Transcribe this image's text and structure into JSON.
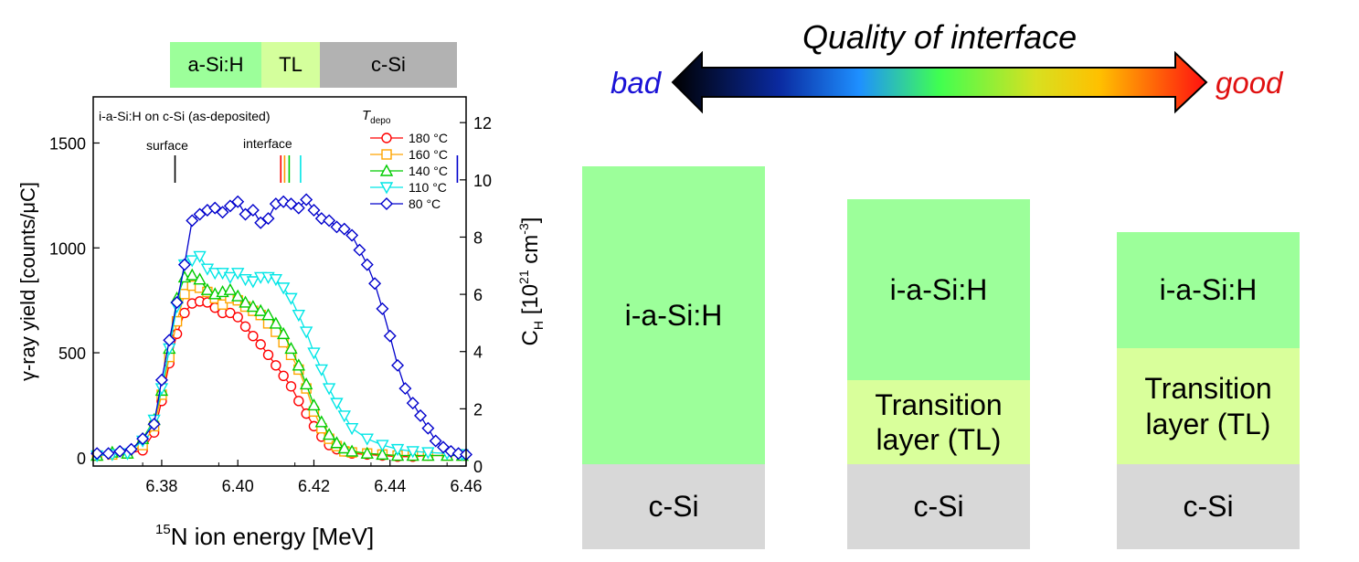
{
  "colors": {
    "asi": "#9cff9a",
    "tl": "#d9ff9b",
    "csi": "#d8d8d8",
    "bar_asi": "#9cff9a",
    "bar_tl": "#d4ff9c",
    "bar_csi": "#b2b2b2"
  },
  "top_bar": {
    "asi": "a-Si:H",
    "tl": "TL",
    "csi": "c-Si"
  },
  "quality": {
    "title": "Quality of interface",
    "bad": "bad",
    "good": "good"
  },
  "stacks": [
    {
      "top": "i-a-Si:H",
      "bottom": "c-Si"
    },
    {
      "top": "i-a-Si:H",
      "middle": "Transition layer (TL)",
      "bottom": "c-Si"
    },
    {
      "top": "i-a-Si:H",
      "middle": "Transition layer (TL)",
      "bottom": "c-Si"
    }
  ],
  "chart_data": {
    "type": "line",
    "title": "i-a-Si:H on c-Si (as-deposited)",
    "xlabel": "15N ion energy [MeV]",
    "xlabel_sup": "15",
    "xlabel_rest": "N ion energy [MeV]",
    "ylabel": "γ-ray yield [counts/μC]",
    "y2label": "C_H [10^21 cm^-3]",
    "y2label_main": "C",
    "y2label_sub": "H",
    "y2label_mid": " [10",
    "y2label_sup1": "21",
    "y2label_cm": " cm",
    "y2label_sup2": "-3",
    "y2label_end": "]",
    "xlim": [
      6.362,
      6.46
    ],
    "ylim": [
      -40,
      1720
    ],
    "y2lim": [
      0,
      12.9
    ],
    "xticks": [
      6.38,
      6.4,
      6.42,
      6.44,
      6.46
    ],
    "xticklabels": [
      "6.38",
      "6.40",
      "6.42",
      "6.44",
      "6.46"
    ],
    "yticks": [
      0,
      500,
      1000,
      1500
    ],
    "yticklabels": [
      "0",
      "500",
      "1000",
      "1500"
    ],
    "y2ticks": [
      0,
      2,
      4,
      6,
      8,
      10,
      12
    ],
    "y2ticklabels": [
      "0",
      "2",
      "4",
      "6",
      "8",
      "10",
      "12"
    ],
    "legend_title": "T",
    "legend_title_sub": "depo",
    "legend_placement": "top-right",
    "annotations": {
      "surface": "surface",
      "interface": "interface"
    },
    "markers": [
      {
        "label": "surface",
        "x": 6.3835,
        "color": "#000000"
      },
      {
        "x": 6.4113,
        "color": "#ff0000"
      },
      {
        "x": 6.4123,
        "color": "#ff9900"
      },
      {
        "x": 6.4135,
        "color": "#00cc00"
      },
      {
        "x": 6.4165,
        "color": "#00e6e6"
      },
      {
        "x": 6.4577,
        "color": "#0000cc"
      }
    ],
    "series": [
      {
        "name": "180 °C",
        "color": "#ff0000",
        "marker": "circle",
        "x": [
          6.363,
          6.367,
          6.371,
          6.375,
          6.378,
          6.38,
          6.382,
          6.384,
          6.386,
          6.388,
          6.39,
          6.392,
          6.394,
          6.396,
          6.398,
          6.4,
          6.402,
          6.404,
          6.406,
          6.408,
          6.41,
          6.412,
          6.414,
          6.416,
          6.418,
          6.42,
          6.422,
          6.424,
          6.426,
          6.428,
          6.43,
          6.434,
          6.438,
          6.442,
          6.446,
          6.45,
          6.455,
          6.459
        ],
        "y": [
          10,
          15,
          20,
          35,
          120,
          270,
          450,
          590,
          690,
          735,
          745,
          740,
          715,
          690,
          690,
          670,
          625,
          580,
          540,
          490,
          440,
          390,
          340,
          270,
          210,
          150,
          100,
          60,
          40,
          30,
          20,
          15,
          10,
          5,
          5,
          10,
          10,
          15
        ]
      },
      {
        "name": "160 °C",
        "color": "#ffa500",
        "marker": "square",
        "x": [
          6.363,
          6.367,
          6.371,
          6.375,
          6.378,
          6.38,
          6.382,
          6.384,
          6.386,
          6.388,
          6.39,
          6.392,
          6.394,
          6.396,
          6.398,
          6.4,
          6.402,
          6.404,
          6.406,
          6.408,
          6.41,
          6.412,
          6.414,
          6.416,
          6.418,
          6.42,
          6.422,
          6.424,
          6.426,
          6.428,
          6.43,
          6.434,
          6.438,
          6.442,
          6.446,
          6.45,
          6.455,
          6.459
        ],
        "y": [
          10,
          15,
          20,
          60,
          150,
          300,
          480,
          650,
          780,
          820,
          810,
          790,
          760,
          730,
          760,
          750,
          720,
          700,
          680,
          640,
          600,
          550,
          490,
          420,
          330,
          220,
          140,
          90,
          55,
          30,
          25,
          20,
          15,
          10,
          10,
          10,
          10,
          10
        ]
      },
      {
        "name": "140 °C",
        "color": "#00cc00",
        "marker": "triangle-up",
        "x": [
          6.363,
          6.367,
          6.371,
          6.375,
          6.378,
          6.38,
          6.382,
          6.384,
          6.386,
          6.388,
          6.39,
          6.392,
          6.394,
          6.396,
          6.398,
          6.4,
          6.402,
          6.404,
          6.406,
          6.408,
          6.41,
          6.412,
          6.414,
          6.416,
          6.418,
          6.42,
          6.422,
          6.424,
          6.426,
          6.428,
          6.43,
          6.434,
          6.438,
          6.442,
          6.446,
          6.45,
          6.455,
          6.459
        ],
        "y": [
          10,
          25,
          20,
          90,
          180,
          320,
          520,
          760,
          860,
          870,
          850,
          800,
          780,
          790,
          800,
          770,
          740,
          720,
          700,
          680,
          640,
          590,
          520,
          440,
          350,
          250,
          170,
          110,
          70,
          45,
          30,
          20,
          15,
          10,
          10,
          10,
          10,
          10
        ]
      },
      {
        "name": "110 °C",
        "color": "#00e6e6",
        "marker": "triangle-down",
        "x": [
          6.363,
          6.367,
          6.371,
          6.375,
          6.378,
          6.38,
          6.382,
          6.384,
          6.386,
          6.388,
          6.39,
          6.392,
          6.394,
          6.396,
          6.398,
          6.4,
          6.402,
          6.404,
          6.406,
          6.408,
          6.41,
          6.412,
          6.414,
          6.416,
          6.418,
          6.42,
          6.422,
          6.424,
          6.426,
          6.428,
          6.43,
          6.434,
          6.438,
          6.442,
          6.446,
          6.45,
          6.455,
          6.459
        ],
        "y": [
          10,
          15,
          20,
          80,
          180,
          330,
          520,
          720,
          920,
          940,
          960,
          900,
          880,
          880,
          860,
          880,
          850,
          840,
          860,
          860,
          850,
          810,
          760,
          680,
          600,
          500,
          420,
          330,
          260,
          200,
          140,
          90,
          60,
          40,
          30,
          25,
          20,
          15
        ]
      },
      {
        "name": "80 °C",
        "color": "#0000cc",
        "marker": "diamond",
        "x": [
          6.363,
          6.366,
          6.369,
          6.372,
          6.375,
          6.378,
          6.38,
          6.382,
          6.384,
          6.386,
          6.388,
          6.39,
          6.392,
          6.394,
          6.396,
          6.398,
          6.4,
          6.402,
          6.404,
          6.406,
          6.408,
          6.41,
          6.412,
          6.414,
          6.416,
          6.418,
          6.42,
          6.422,
          6.424,
          6.426,
          6.428,
          6.43,
          6.432,
          6.434,
          6.436,
          6.438,
          6.44,
          6.442,
          6.444,
          6.446,
          6.448,
          6.45,
          6.452,
          6.454,
          6.456,
          6.458,
          6.46
        ],
        "y": [
          20,
          20,
          30,
          40,
          90,
          160,
          370,
          560,
          740,
          920,
          1130,
          1160,
          1180,
          1190,
          1170,
          1200,
          1220,
          1160,
          1180,
          1120,
          1140,
          1210,
          1220,
          1210,
          1190,
          1230,
          1180,
          1140,
          1130,
          1100,
          1090,
          1060,
          990,
          920,
          830,
          710,
          580,
          440,
          330,
          260,
          200,
          140,
          80,
          50,
          30,
          20,
          15
        ]
      }
    ]
  }
}
